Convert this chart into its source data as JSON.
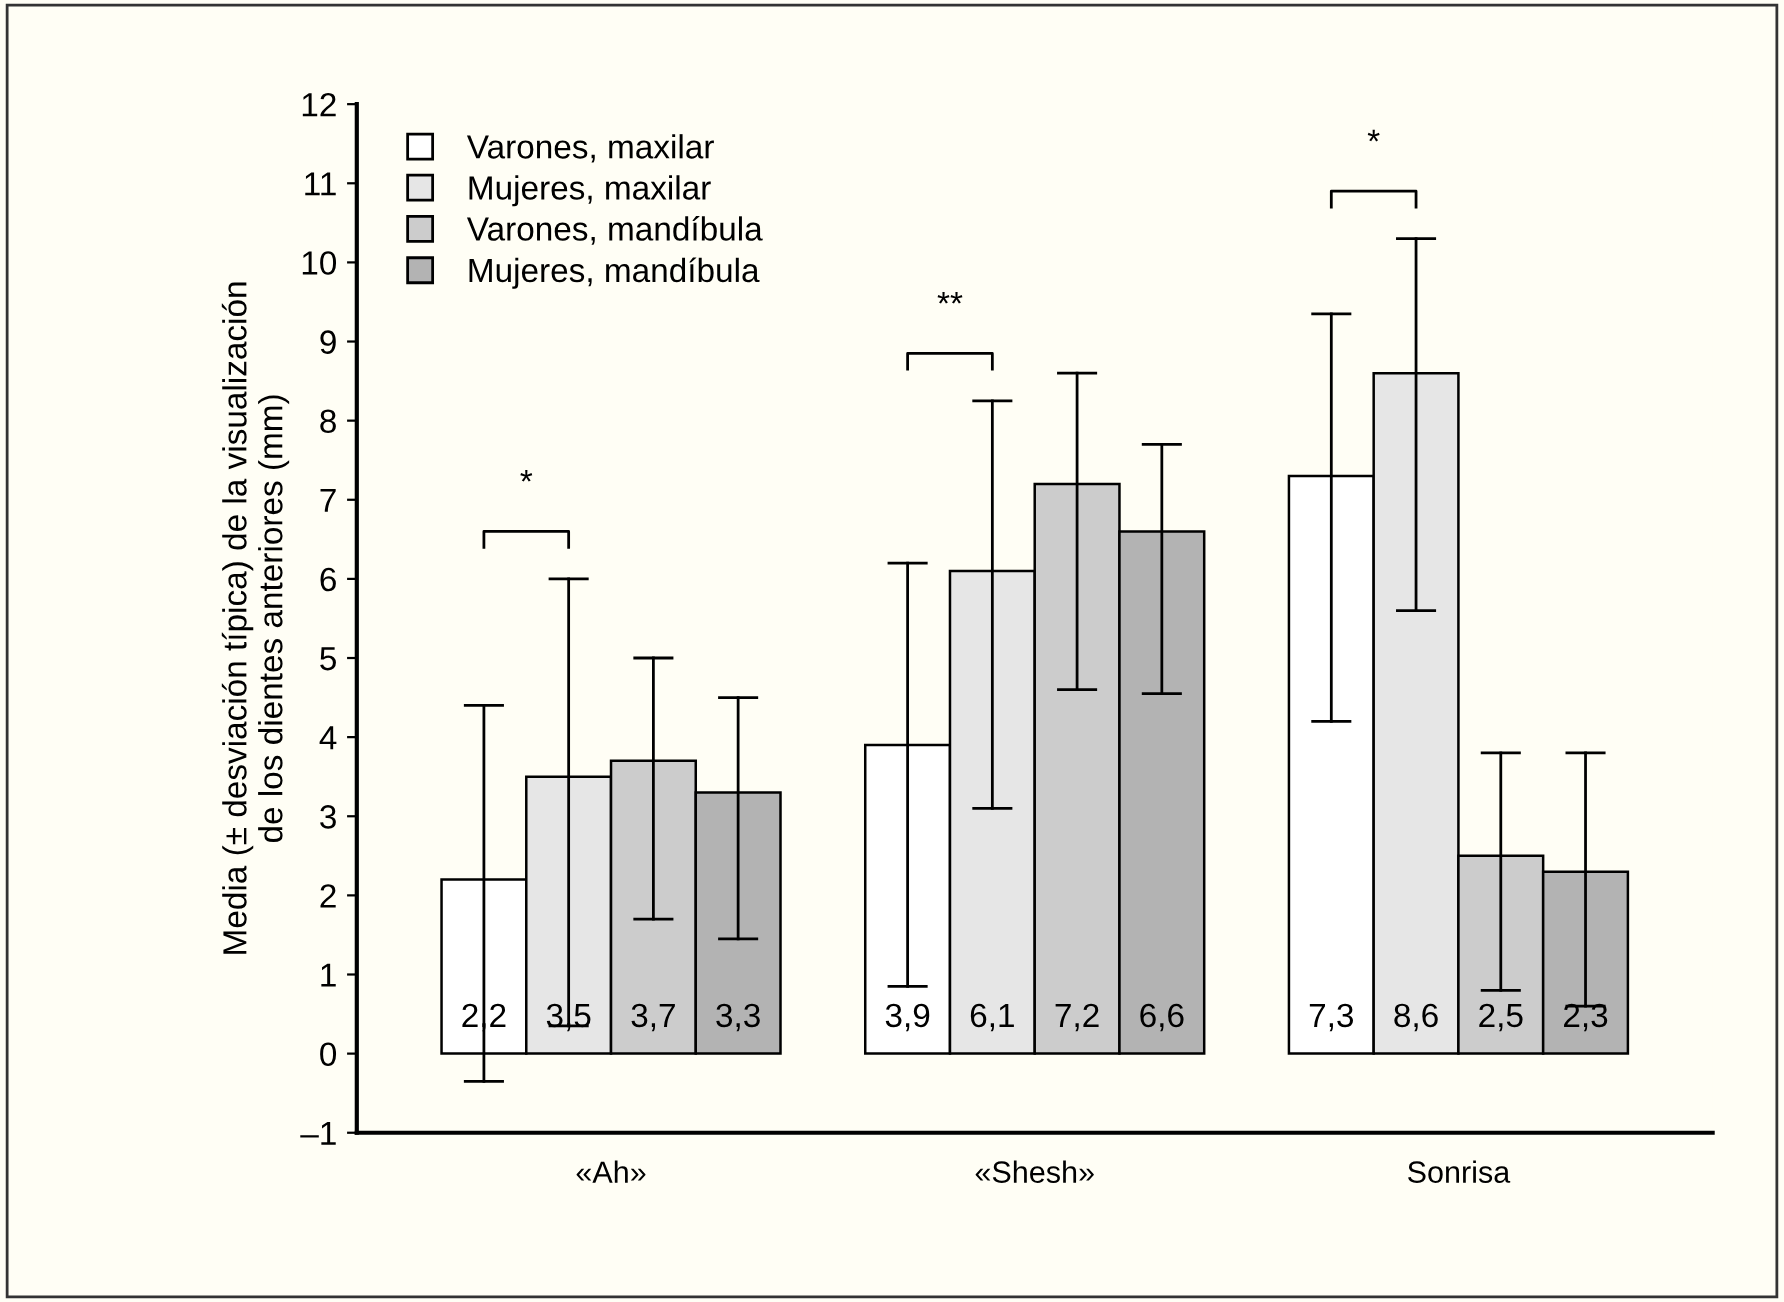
{
  "chart_data": {
    "type": "bar",
    "ylabel": "Media (± desviación típica) de la visualización\nde los dientes anteriores (mm)",
    "categories": [
      "«Ah»",
      "«Shesh»",
      "Sonrisa"
    ],
    "ylim": [
      -1,
      12
    ],
    "yticks": [
      {
        "value": -1,
        "label": "–1"
      },
      0,
      1,
      2,
      3,
      4,
      5,
      6,
      7,
      8,
      9,
      10,
      11,
      12
    ],
    "series": [
      {
        "name": "Varones, maxilar",
        "color": "#ffffff",
        "values": [
          2.2,
          3.9,
          7.3
        ],
        "value_labels": [
          "2,2",
          "3,9",
          "7,3"
        ],
        "errors": [
          [
            -0.35,
            4.4
          ],
          [
            0.85,
            6.2
          ],
          [
            4.2,
            9.35
          ]
        ]
      },
      {
        "name": "Mujeres, maxilar",
        "color": "#e6e6e6",
        "values": [
          3.5,
          6.1,
          8.6
        ],
        "value_labels": [
          "3,5",
          "6,1",
          "8,6"
        ],
        "errors": [
          [
            0.35,
            6.0
          ],
          [
            3.1,
            8.25
          ],
          [
            5.6,
            10.3
          ]
        ]
      },
      {
        "name": "Varones, mandíbula",
        "color": "#cccccc",
        "values": [
          3.7,
          7.2,
          2.5
        ],
        "value_labels": [
          "3,7",
          "7,2",
          "2,5"
        ],
        "errors": [
          [
            1.7,
            5.0
          ],
          [
            4.6,
            8.6
          ],
          [
            0.8,
            3.8
          ]
        ]
      },
      {
        "name": "Mujeres, mandíbula",
        "color": "#b3b3b3",
        "values": [
          3.3,
          6.6,
          2.3
        ],
        "value_labels": [
          "3,3",
          "6,6",
          "2,3"
        ],
        "errors": [
          [
            1.45,
            4.5
          ],
          [
            4.55,
            7.7
          ],
          [
            0.6,
            3.8
          ]
        ]
      }
    ],
    "annotations": [
      "*",
      "**",
      "*"
    ],
    "legend": "top left",
    "grid": false
  }
}
